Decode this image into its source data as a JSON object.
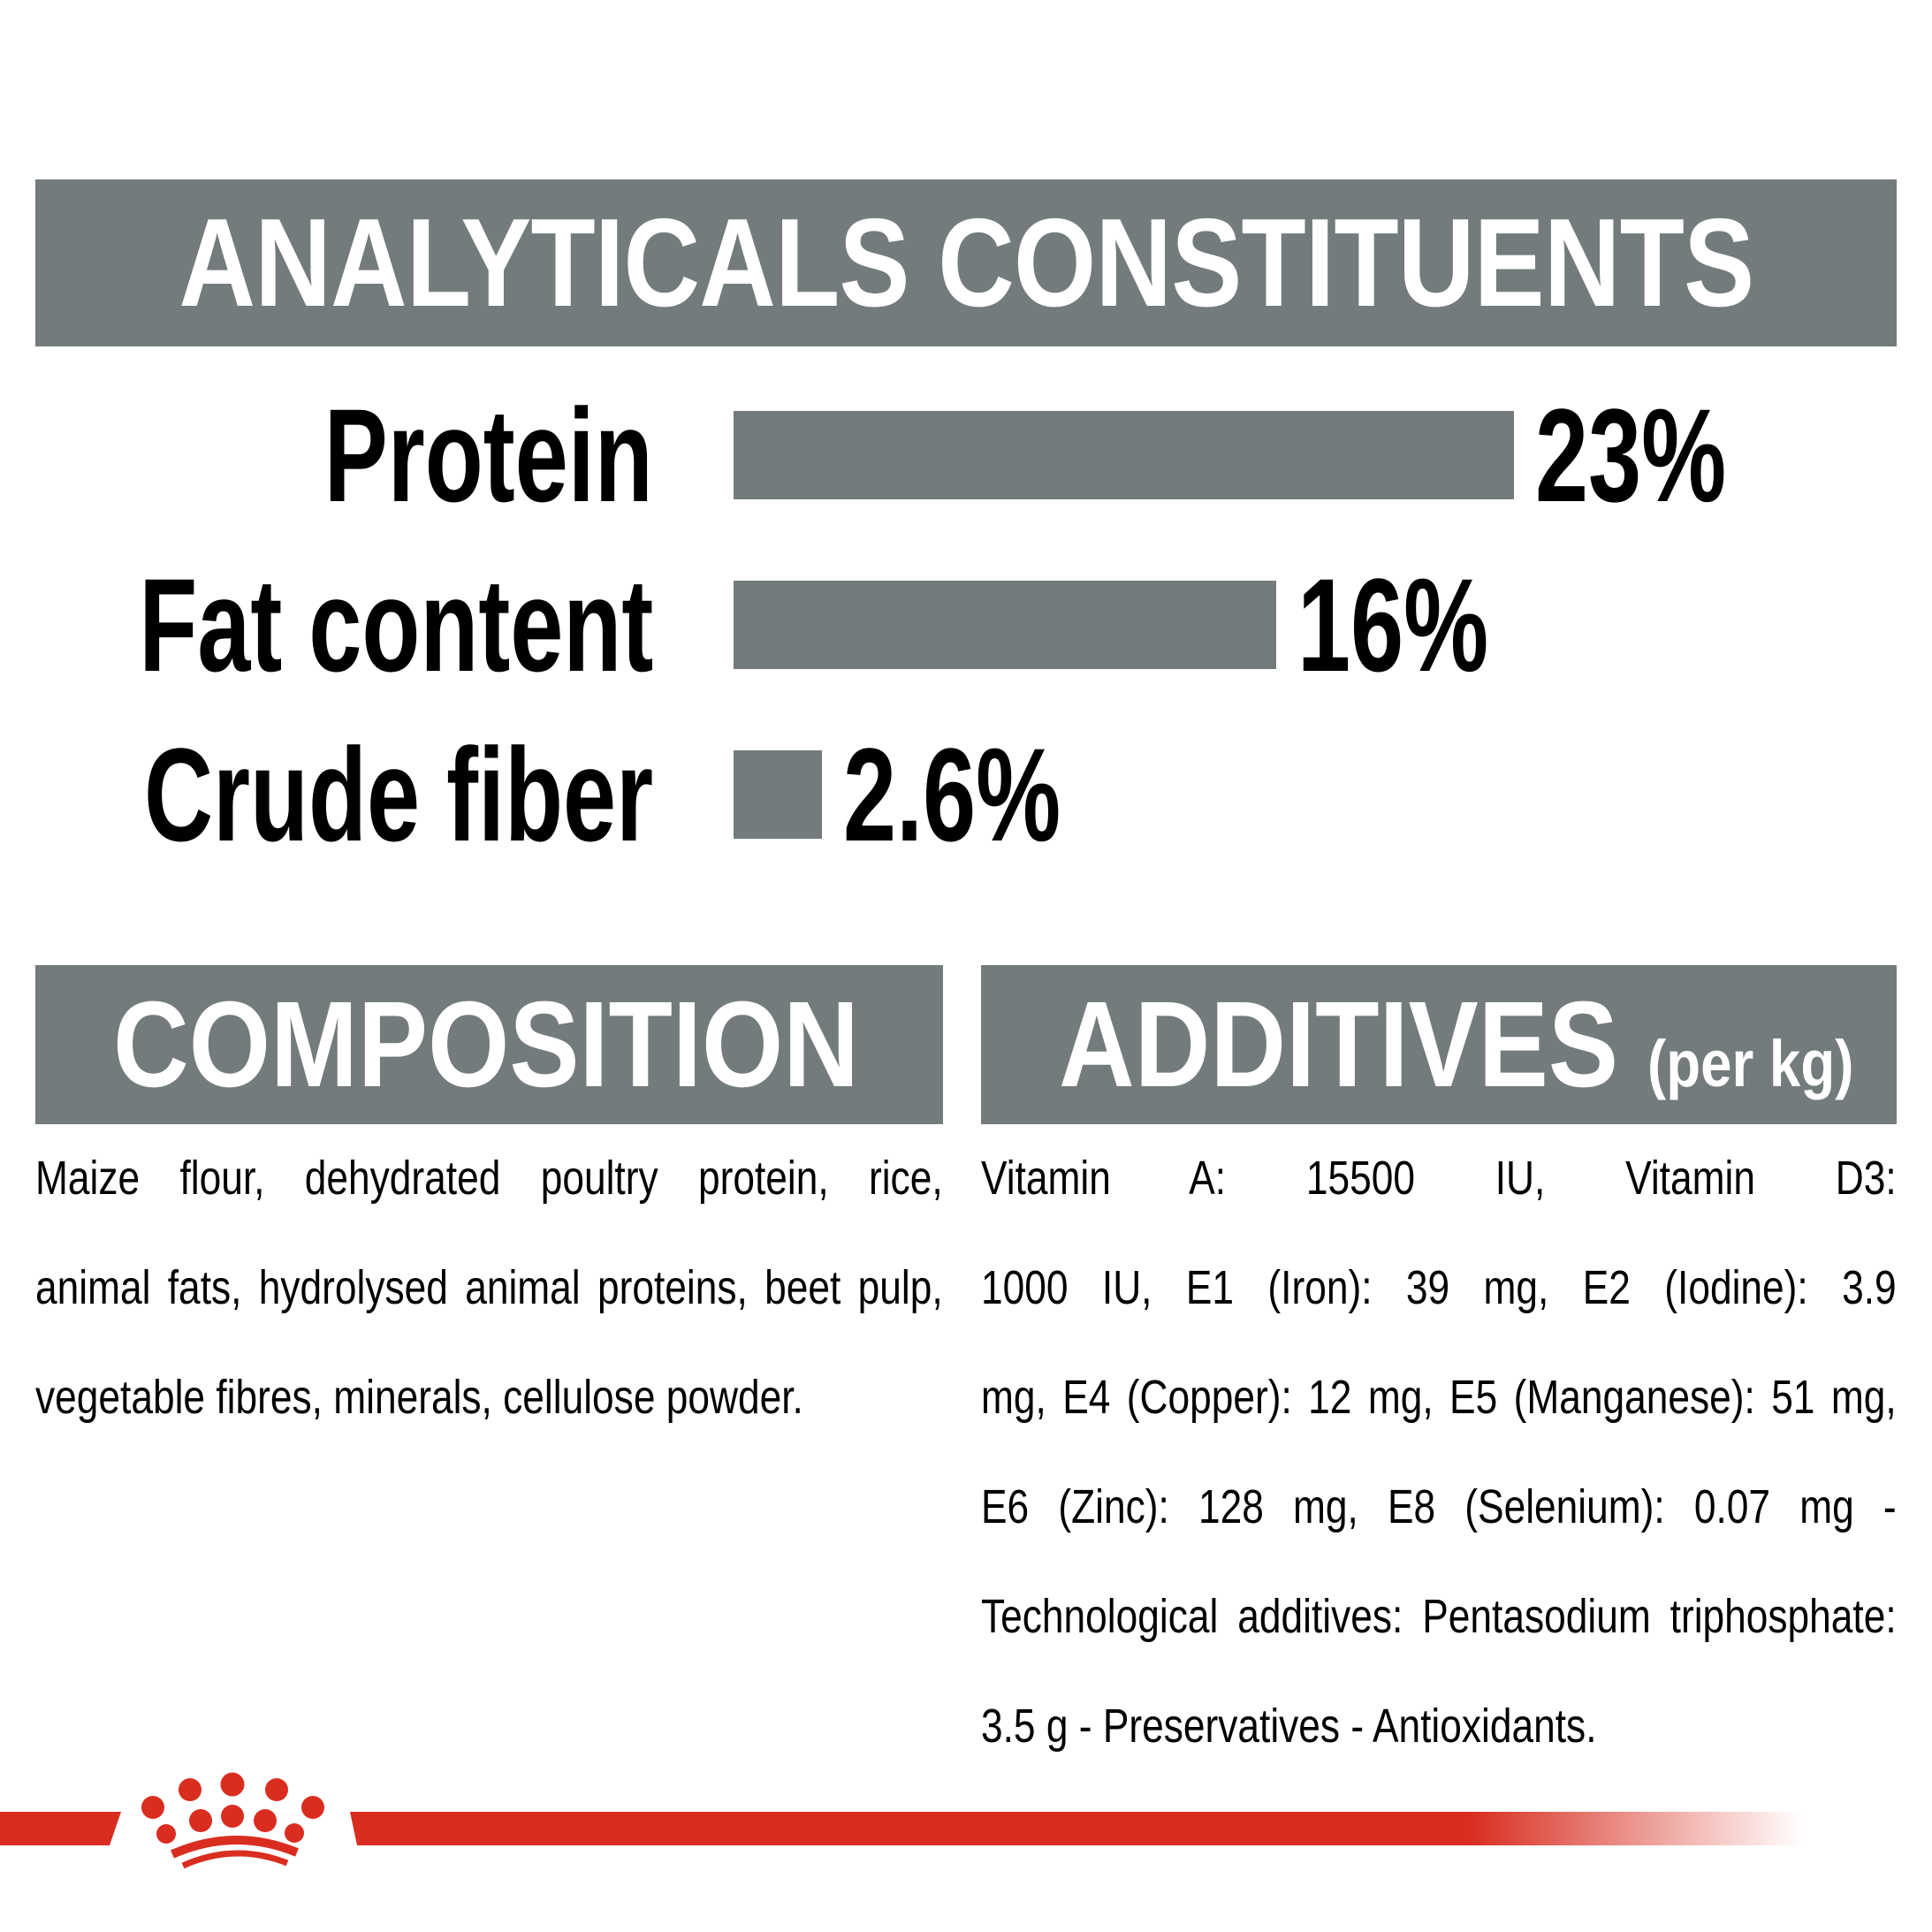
{
  "colors": {
    "gray": "#737b7d",
    "red": "#d92d20",
    "text": "#000000",
    "white": "#ffffff"
  },
  "analyticals": {
    "title": "ANALYTICALS CONSTITUENTS"
  },
  "chart_data": {
    "type": "bar",
    "orientation": "horizontal",
    "title": "ANALYTICALS CONSTITUENTS",
    "categories": [
      "Protein",
      "Fat content",
      "Crude fiber"
    ],
    "values": [
      23,
      16,
      2.6
    ],
    "value_labels": [
      "23%",
      "16%",
      "2.6%"
    ],
    "xlabel": "",
    "ylabel": "",
    "xlim": [
      0,
      23
    ],
    "bar_color": "#737b7d",
    "grid": false,
    "legend": false
  },
  "composition": {
    "title": "COMPOSITION",
    "body": "Maize flour, dehydrated poultry protein, rice, animal fats, hydrolysed animal proteins, beet pulp, vegetable fibres, minerals, cellulose powder.",
    "body_lines": [
      "Maize flour, dehydrated poultry protein, rice,",
      "animal fats, hydrolysed animal proteins, beet pulp,",
      "vegetable fibres, minerals, cellulose powder."
    ]
  },
  "additives": {
    "title": "ADDITIVES",
    "title_suffix": "(per kg)",
    "body": "Vitamin A: 15500 IU, Vitamin D3: 1000 IU, E1 (Iron): 39 mg, E2 (Iodine): 3.9 mg, E4 (Copper): 12 mg, E5 (Manganese): 51 mg, E6 (Zinc): 128 mg, E8 (Selenium): 0.07 mg - Technological additives: Pentasodium triphosphate: 3.5 g - Preservatives - Antioxidants.",
    "body_lines": [
      "Vitamin A: 15500 IU, Vitamin D3:",
      "1000 IU, E1 (Iron): 39 mg, E2 (Iodine): 3.9",
      "mg, E4 (Copper): 12 mg, E5 (Manganese): 51 mg,",
      "E6 (Zinc): 128 mg, E8 (Selenium): 0.07 mg -",
      "Technological additives: Pentasodium triphosphate:",
      "3.5 g - Preservatives - Antioxidants."
    ]
  },
  "footer": {
    "logo": "royal-canin-crown"
  }
}
